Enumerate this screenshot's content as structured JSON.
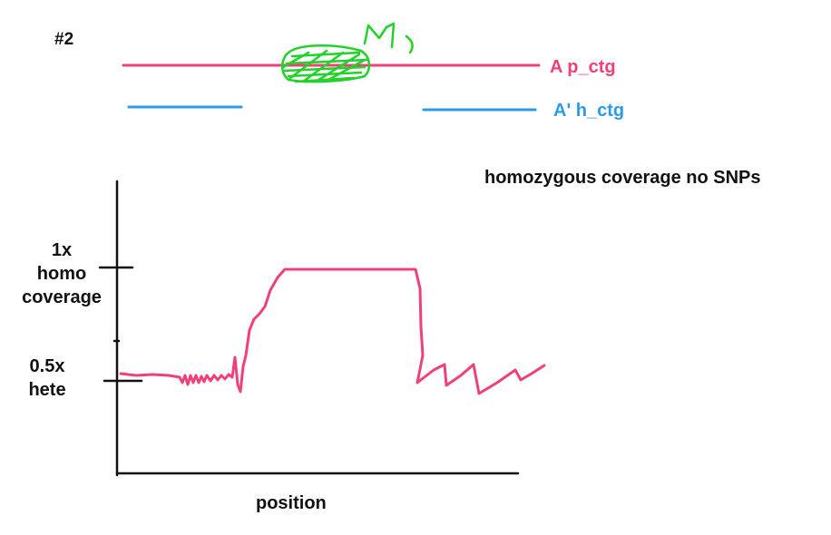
{
  "slide_number": "#2",
  "contigs": {
    "primary": {
      "label": "A p_ctg",
      "color": "#f0407a"
    },
    "haplotig": {
      "label": "A' h_ctg",
      "color": "#2a9be6"
    }
  },
  "highlight_color": "#22d12a",
  "annotation": "homozygous coverage no SNPs",
  "plot": {
    "ytick_high": {
      "line1": "1x",
      "line2": "homo",
      "line3": "coverage"
    },
    "ytick_low": {
      "line1": "0.5x",
      "line2": "hete"
    },
    "xlabel": "position",
    "line_color": "#f0407a"
  }
}
